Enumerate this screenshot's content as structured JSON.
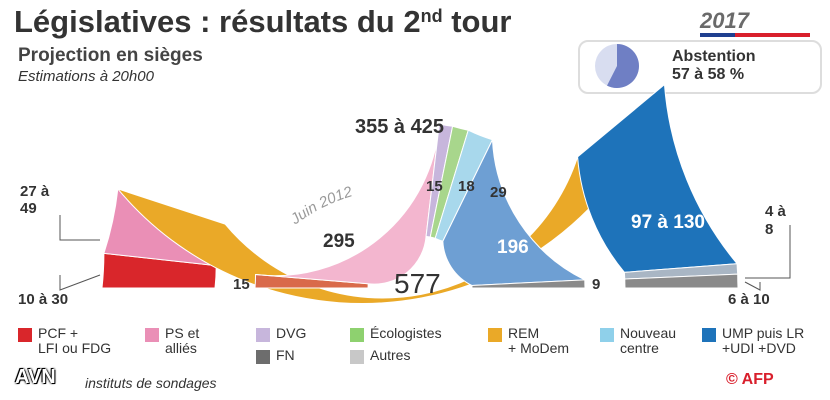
{
  "header": {
    "title": "Législatives : résultats du 2",
    "title_sup": "nd",
    "title_end": " tour",
    "subtitle": "Projection en sièges",
    "estimation": "Estimations à 20h00",
    "year": "2017"
  },
  "abstention": {
    "label": "Abstention",
    "value": "57 à 58 %",
    "pie_fraction": 0.575,
    "pie_color": "#6f7fc4",
    "pie_bg": "#d8ddf0"
  },
  "chart_data": [
    {
      "type": "semicircle",
      "title": "2017 projection",
      "segments": [
        {
          "party": "PCF + LFI ou FDG",
          "seats": 20,
          "label": "10 à 30",
          "color": "#d9262b"
        },
        {
          "party": "PS et alliés",
          "seats": 38,
          "label": "27 à 49",
          "color": "#ea8fb6"
        },
        {
          "party": "REM + MoDem",
          "seats": 390,
          "label": "355 à 425",
          "color": "#eaa928"
        },
        {
          "party": "UMP puis LR +UDI +DVD",
          "seats": 113,
          "label": "97 à 130",
          "color": "#1e73ba"
        },
        {
          "party": "Autres",
          "seats": 6,
          "label": "4 à 8",
          "color": "#a9b6c4"
        },
        {
          "party": "FN",
          "seats": 8,
          "label": "6 à 10",
          "color": "#8a8a8a"
        }
      ]
    },
    {
      "type": "semicircle",
      "title": "Juin 2012",
      "total": "577",
      "segments": [
        {
          "party": "Autres",
          "seats": 15,
          "label": "15",
          "color": "#d96a4a"
        },
        {
          "party": "PS et alliés",
          "seats": 295,
          "label": "295",
          "color": "#f3b6cf"
        },
        {
          "party": "DVG",
          "seats": 15,
          "label": "15",
          "color": "#c7b6dc"
        },
        {
          "party": "Écologistes",
          "seats": 18,
          "label": "18",
          "color": "#a8d68c"
        },
        {
          "party": "Nouveau centre",
          "seats": 29,
          "label": "29",
          "color": "#a8d8ec"
        },
        {
          "party": "UMP puis LR +UDI +DVD",
          "seats": 196,
          "label": "196",
          "color": "#6e9fd3"
        },
        {
          "party": "FN",
          "seats": 9,
          "label": "9",
          "color": "#8a8a8a"
        }
      ]
    }
  ],
  "legend": [
    {
      "line1": "PCF +",
      "line2": "LFI ou FDG",
      "color": "#d9262b"
    },
    {
      "line1": "PS et",
      "line2": "alliés",
      "color": "#ea8fb6"
    },
    {
      "line1": "DVG",
      "line2": "",
      "color": "#c7b6dc"
    },
    {
      "line1": "Écologistes",
      "line2": "",
      "color": "#8ed16f"
    },
    {
      "line1": "REM",
      "line2": "+ MoDem",
      "color": "#eaa928"
    },
    {
      "line1": "Nouveau",
      "line2": "centre",
      "color": "#8fd0ea"
    },
    {
      "line1": "UMP puis LR",
      "line2": "+UDI +DVD",
      "color": "#1e73ba"
    },
    {
      "line1": "FN",
      "line2": "",
      "color": "#6d6d6d"
    },
    {
      "line1": "Autres",
      "line2": "",
      "color": "#c8c8c8"
    }
  ],
  "footer": {
    "source": "instituts de sondages",
    "watermark": "AVN",
    "credit_symbol": "©",
    "credit": "AFP"
  }
}
